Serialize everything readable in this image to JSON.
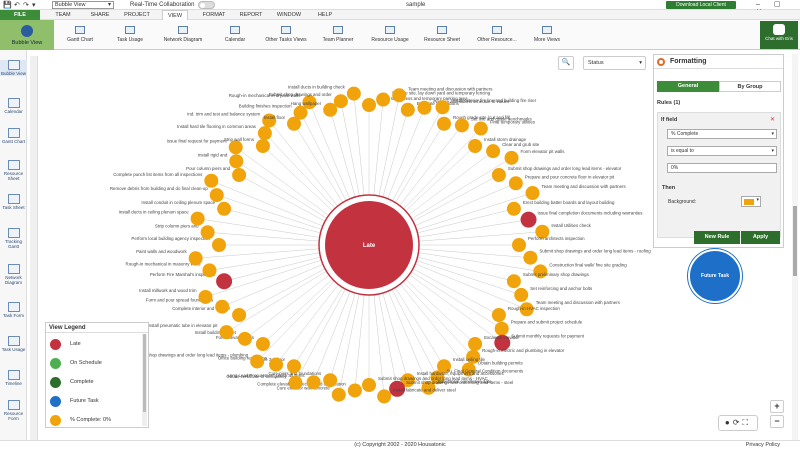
{
  "titlebar": {
    "view_select": "Bubble View",
    "rtc_label": "Real-Time Collaboration",
    "doc_title": "sample",
    "download_label": "Download Local Client",
    "window_controls": "– ▢ ✕"
  },
  "menu": [
    "FILE",
    "TEAM",
    "SHARE",
    "PROJECT",
    "VIEW",
    "FORMAT",
    "REPORT",
    "WINDOW",
    "HELP"
  ],
  "ribbon": {
    "bubble_view": "Bubble View",
    "items": [
      "Gantt Chart",
      "Task Usage",
      "Network Diagram",
      "Calendar",
      "Other Tasks Views",
      "Team Planner",
      "Resource Usage",
      "Resource Sheet",
      "Other Resource...",
      "More Views"
    ],
    "chat": "Chat with Eris"
  },
  "sidebar": [
    "Bubble View",
    "Calendar",
    "Gantt Chart",
    "Resource Sheet",
    "Task Sheet",
    "Tracking Gantt",
    "Network Diagram",
    "Task Form",
    "Task Usage",
    "Timeline",
    "Resource Form"
  ],
  "canvas": {
    "status_select": "Status",
    "center_label": "Late",
    "future_task": "Future Task"
  },
  "nodes": [
    {
      "label": "Stone site access and temporary parking area",
      "status": "pct"
    },
    {
      "label": "Prepare site, lay down yard and temporary fencing",
      "status": "pct"
    },
    {
      "label": "Team meeting and discussion with partners",
      "status": "pct"
    },
    {
      "label": "Excavate foundations",
      "status": "pct"
    },
    {
      "label": "Prepare and submit schedule of values",
      "status": "pct"
    },
    {
      "label": "Install exterior fire line and building fire riser",
      "status": "pct"
    },
    {
      "label": "Rough grade site (cut and fill)",
      "status": "pct"
    },
    {
      "label": "Set line and grade benchmarks",
      "status": "pct"
    },
    {
      "label": "Final temporary utilities",
      "status": "pct"
    },
    {
      "label": "Install storm drainage",
      "status": "pct"
    },
    {
      "label": "Clear and grub site",
      "status": "pct"
    },
    {
      "label": "Form elevator pit walls",
      "status": "pct"
    },
    {
      "label": "Submit shop drawings and order long lead items - elevator",
      "status": "pct"
    },
    {
      "label": "Prepare and pour concrete floor in elevator pit",
      "status": "pct"
    },
    {
      "label": "Team meeting and discussion with partners",
      "status": "pct"
    },
    {
      "label": "Erect building batter boards and layout building",
      "status": "pct"
    },
    {
      "label": "Issue final completion documents including warranties",
      "status": "late"
    },
    {
      "label": "Install Utilities check",
      "status": "pct"
    },
    {
      "label": "Perform architects inspection",
      "status": "pct"
    },
    {
      "label": "Submit shop drawings and order long lead items - roofing",
      "status": "pct"
    },
    {
      "label": "Construction final walk/ fine site grading",
      "status": "pct"
    },
    {
      "label": "Submit preliminary shop drawings",
      "status": "pct"
    },
    {
      "label": "Set reinforcing and anchor bolts",
      "status": "pct"
    },
    {
      "label": "Team meeting and discussion with partners",
      "status": "pct"
    },
    {
      "label": "Rough-in HVAC inspection",
      "status": "pct"
    },
    {
      "label": "Prepare and submit project schedule",
      "status": "pct"
    },
    {
      "label": "Submit monthly requests for payment",
      "status": "late"
    },
    {
      "label": "Excavate elevator",
      "status": "pct"
    },
    {
      "label": "Rough-in electric and plumbing in elevator",
      "status": "pct"
    },
    {
      "label": "Obtain building permits",
      "status": "pct"
    },
    {
      "label": "Install ceiling tile",
      "status": "pct"
    },
    {
      "label": "Su. Final General Condition documents",
      "status": "pct"
    },
    {
      "label": "Substantial completion date",
      "status": "pct"
    },
    {
      "label": "Install hardware, equipment and accessories",
      "status": "pct"
    },
    {
      "label": "Submit shop drawings and order long lead items - steel",
      "status": "late"
    },
    {
      "label": "Install fabricate and deliver steel",
      "status": "pct"
    },
    {
      "label": "Submit shop drawings and order long lead items - HVAC",
      "status": "pct"
    },
    {
      "label": "Complete elevator inspection and certification",
      "status": "pct"
    },
    {
      "label": "Cure elevator wall concrete",
      "status": "pct"
    },
    {
      "label": "Cure piers and foundations",
      "status": "pct"
    },
    {
      "label": "Long Lead Procurement check all items",
      "status": "pct"
    },
    {
      "label": "Obtain certificate of occupancy",
      "status": "pct"
    },
    {
      "label": "Cure 3rd floor",
      "status": "pct"
    },
    {
      "label": "Office building receptions",
      "status": "pct"
    },
    {
      "label": "Submit shop drawings and order long lead items - plumbing",
      "status": "pct"
    },
    {
      "label": "Form elevator walls",
      "status": "pct"
    },
    {
      "label": "Install building carpet",
      "status": "pct"
    },
    {
      "label": "Install pneumatic tube in elevator pit",
      "status": "pct"
    },
    {
      "label": "Complete interior and exterior",
      "status": "pct"
    },
    {
      "label": "Form and pour spread foundations",
      "status": "pct"
    },
    {
      "label": "Install millwork and wood trim",
      "status": "pct"
    },
    {
      "label": "Perform Fire Marshal's inspection",
      "status": "late"
    },
    {
      "label": "Rough-in mechanical in masonry walls",
      "status": "pct"
    },
    {
      "label": "Paint walls and woodwork",
      "status": "pct"
    },
    {
      "label": "Perform local building agency inspection",
      "status": "pct"
    },
    {
      "label": "Strip column piers and",
      "status": "pct"
    },
    {
      "label": "Install ducts in ceiling plenum space",
      "status": "pct"
    },
    {
      "label": "Install conduit in ceiling plenum space",
      "status": "pct"
    },
    {
      "label": "Remove debris from building and do final clean-up",
      "status": "pct"
    },
    {
      "label": "Complete punch list items from all inspections",
      "status": "pct"
    },
    {
      "label": "Pour column piers and",
      "status": "pct"
    },
    {
      "label": "Install rigid and",
      "status": "pct"
    },
    {
      "label": "Issue final request for payment",
      "status": "pct"
    },
    {
      "label": "Strip wall forms",
      "status": "pct"
    },
    {
      "label": "Install hard tile flooring in common areas",
      "status": "pct"
    },
    {
      "label": "Ind. trim and test and balance system",
      "status": "pct"
    },
    {
      "label": "Install floor",
      "status": "pct"
    },
    {
      "label": "Building finishes inspection",
      "status": "pct"
    },
    {
      "label": "Rough-in mechanical in drywall walls",
      "status": "pct"
    },
    {
      "label": "Hang wallpaper",
      "status": "pct"
    },
    {
      "label": "Submit shop drawings and order",
      "status": "pct"
    },
    {
      "label": "Install ducts in building check",
      "status": "pct"
    }
  ],
  "legend": {
    "title": "View Legend",
    "items": [
      {
        "label": "Late",
        "color": "#c2323f"
      },
      {
        "label": "On Schedule",
        "color": "#4cb050"
      },
      {
        "label": "Complete",
        "color": "#2e6e2d"
      },
      {
        "label": "Future Task",
        "color": "#1e6fc7"
      },
      {
        "label": "% Complete: 0%",
        "color": "#f0a30a"
      }
    ]
  },
  "formatting": {
    "title": "Formatting",
    "tab_general": "General",
    "tab_by_group": "By Group",
    "rules_label": "Rules (1)",
    "rule_header": "If field",
    "field": "% Complete",
    "operator": "is equal to",
    "value": "0%",
    "then_label": "Then",
    "background_label": "Background:",
    "background_color": "#f0a30a",
    "new_rule": "New Rule",
    "apply": "Apply"
  },
  "footer": {
    "copyright": "(c) Copyright 2002 - 2020 Housatonic",
    "privacy": "Privacy Policy"
  },
  "colors": {
    "late": "#c2323f",
    "pct": "#f0a30a",
    "future": "#1e6fc7",
    "accent_green": "#3c8c3a"
  }
}
